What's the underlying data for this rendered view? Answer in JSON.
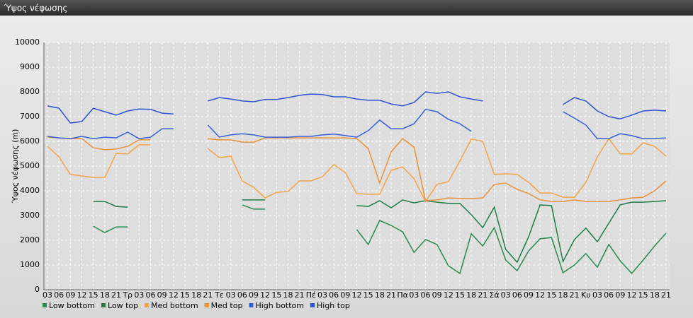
{
  "chart_data": {
    "type": "line",
    "title": "Ύψος νέφωσης",
    "y_label": "Ύψος νέφωσης (m)",
    "categories": [
      "03",
      "06",
      "09",
      "12",
      "15",
      "18",
      "21",
      "Τρ",
      "03",
      "06",
      "09",
      "12",
      "15",
      "18",
      "21",
      "Τε",
      "03",
      "06",
      "09",
      "12",
      "15",
      "18",
      "21",
      "Πέ",
      "03",
      "06",
      "09",
      "12",
      "15",
      "18",
      "21",
      "Πα",
      "03",
      "06",
      "09",
      "12",
      "15",
      "18",
      "21",
      "Σά",
      "03",
      "06",
      "09",
      "12",
      "15",
      "18",
      "21",
      "Κυ",
      "03",
      "06",
      "09",
      "12",
      "15",
      "18",
      "21"
    ],
    "ylim": [
      0,
      10000
    ],
    "yticks": [
      0,
      1000,
      2000,
      3000,
      4000,
      5000,
      6000,
      7000,
      8000,
      9000,
      10000
    ],
    "grid": true,
    "series": [
      {
        "name": "Low bottom",
        "color": "#2a8a52",
        "values": [
          null,
          null,
          null,
          null,
          2570,
          2310,
          2540,
          2540,
          null,
          null,
          null,
          null,
          null,
          null,
          null,
          null,
          null,
          3430,
          3260,
          3260,
          null,
          null,
          null,
          null,
          null,
          null,
          null,
          2430,
          1830,
          2800,
          2600,
          2340,
          1510,
          2030,
          1830,
          970,
          660,
          2260,
          1770,
          2510,
          1200,
          770,
          1570,
          2060,
          2110,
          690,
          1000,
          1460,
          910,
          1830,
          1170,
          660,
          1200,
          1770,
          2290
        ]
      },
      {
        "name": "Low top",
        "color": "#1f7c48",
        "values": [
          null,
          null,
          null,
          null,
          3570,
          3570,
          3370,
          3340,
          null,
          null,
          null,
          null,
          null,
          null,
          null,
          null,
          null,
          3630,
          3630,
          3630,
          null,
          null,
          null,
          null,
          null,
          null,
          null,
          3400,
          3370,
          3600,
          3310,
          3630,
          3510,
          3600,
          3540,
          3490,
          3490,
          3030,
          2510,
          3340,
          1630,
          1110,
          2140,
          3430,
          3400,
          1140,
          2030,
          2490,
          1940,
          2690,
          3430,
          3540,
          3540,
          3570,
          3600
        ]
      },
      {
        "name": "Med bottom",
        "color": "#f0a448",
        "values": [
          5800,
          5370,
          4660,
          4600,
          4540,
          4540,
          5510,
          5490,
          5860,
          5860,
          null,
          null,
          null,
          null,
          5710,
          5340,
          5400,
          4400,
          4140,
          3710,
          3940,
          3970,
          4400,
          4400,
          4570,
          5060,
          4740,
          3890,
          3860,
          3860,
          4830,
          4970,
          4490,
          3570,
          4260,
          4370,
          5200,
          6090,
          6000,
          4660,
          4690,
          4660,
          4340,
          3910,
          3910,
          3740,
          3740,
          4340,
          5370,
          6110,
          5490,
          5490,
          5940,
          5800,
          5400
        ]
      },
      {
        "name": "Med top",
        "color": "#e8923a",
        "values": [
          6170,
          6140,
          6110,
          6110,
          5740,
          5660,
          5690,
          5800,
          6060,
          6060,
          null,
          null,
          null,
          null,
          6110,
          6060,
          6060,
          5970,
          5970,
          6140,
          6140,
          6140,
          6140,
          6140,
          6140,
          6140,
          6140,
          6110,
          5710,
          4310,
          5570,
          6110,
          5770,
          3600,
          3630,
          3710,
          3690,
          3690,
          3710,
          4260,
          4310,
          4060,
          3890,
          3630,
          3570,
          3570,
          3630,
          3570,
          3570,
          3570,
          3630,
          3710,
          3740,
          4000,
          4400
        ]
      },
      {
        "name": "High bottom",
        "color": "#3a5fd8",
        "values": [
          6200,
          6140,
          6110,
          6200,
          6110,
          6170,
          6140,
          6370,
          6110,
          6170,
          6510,
          6510,
          null,
          null,
          6660,
          6170,
          6260,
          6310,
          6260,
          6170,
          6170,
          6170,
          6200,
          6200,
          6260,
          6290,
          6230,
          6170,
          6430,
          6860,
          6510,
          6510,
          6710,
          7290,
          7200,
          6890,
          6710,
          6400,
          null,
          null,
          null,
          null,
          null,
          null,
          null,
          7200,
          6940,
          6660,
          6110,
          6110,
          6310,
          6230,
          6110,
          6110,
          6140
        ]
      },
      {
        "name": "High top",
        "color": "#2f52d0",
        "values": [
          7430,
          7340,
          6740,
          6800,
          7340,
          7200,
          7060,
          7230,
          7310,
          7290,
          7140,
          7110,
          null,
          null,
          7630,
          7770,
          7710,
          7630,
          7600,
          7690,
          7690,
          7770,
          7860,
          7910,
          7890,
          7800,
          7800,
          7710,
          7660,
          7660,
          7510,
          7430,
          7570,
          8000,
          7940,
          8000,
          7800,
          7710,
          7630,
          null,
          null,
          null,
          null,
          null,
          null,
          7490,
          7770,
          7630,
          7230,
          7000,
          6910,
          7060,
          7230,
          7260,
          7230
        ]
      }
    ]
  }
}
